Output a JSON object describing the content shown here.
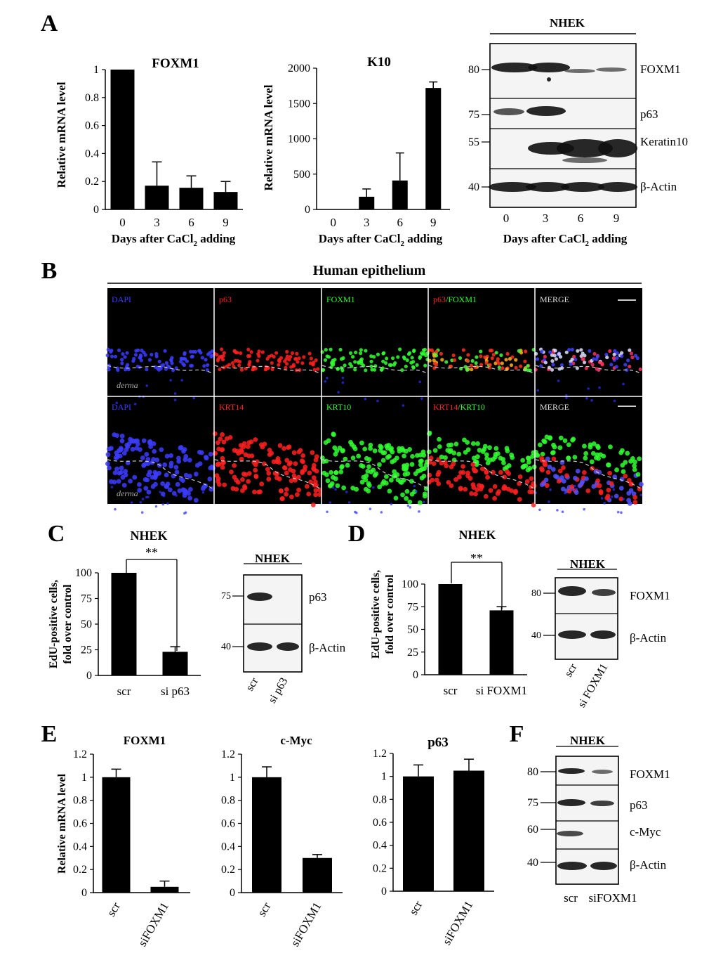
{
  "chart_data": [
    {
      "id": "A1",
      "type": "bar",
      "title": "FOXM1",
      "ylabel": "Relative mRNA level",
      "xlabel": "Days after CaCl",
      "xlabel_sub": "2",
      "xlabel_tail": " adding",
      "categories": [
        "0",
        "3",
        "6",
        "9"
      ],
      "values": [
        1,
        0.17,
        0.155,
        0.125
      ],
      "errors": [
        0,
        0.17,
        0.085,
        0.075
      ],
      "ylim": [
        0,
        1
      ],
      "yticks": [
        "0",
        "0.2",
        "0.4",
        "0.6",
        "0.8",
        "1"
      ]
    },
    {
      "id": "A2",
      "type": "bar",
      "title": "K10",
      "ylabel": "Relative mRNA level",
      "xlabel": "Days after CaCl",
      "xlabel_sub": "2",
      "xlabel_tail": " adding",
      "categories": [
        "0",
        "3",
        "6",
        "9"
      ],
      "values": [
        0,
        180,
        410,
        1720
      ],
      "errors": [
        0,
        110,
        390,
        85
      ],
      "ylim": [
        0,
        2000
      ],
      "yticks": [
        "0",
        "500",
        "1000",
        "1500",
        "2000"
      ]
    },
    {
      "id": "C",
      "type": "bar",
      "title": "NHEK",
      "ylabel": "EdU-positive cells,",
      "ylabel2": "fold over control",
      "categories": [
        "scr",
        "si p63"
      ],
      "values": [
        100,
        23
      ],
      "errors": [
        0,
        5
      ],
      "ylim": [
        0,
        100
      ],
      "yticks": [
        "0",
        "25",
        "50",
        "75",
        "100"
      ],
      "significance": "**"
    },
    {
      "id": "D",
      "type": "bar",
      "title": "NHEK",
      "ylabel": "EdU-positive cells,",
      "ylabel2": "fold over control",
      "categories": [
        "scr",
        "si FOXM1"
      ],
      "values": [
        100,
        71
      ],
      "errors": [
        0,
        4
      ],
      "ylim": [
        0,
        100
      ],
      "yticks": [
        "0",
        "25",
        "50",
        "75",
        "100"
      ],
      "significance": "**"
    },
    {
      "id": "E1",
      "type": "bar",
      "title": "FOXM1",
      "ylabel": "Relative mRNA  level",
      "categories": [
        "scr",
        "siFOXM1"
      ],
      "values": [
        1,
        0.05
      ],
      "errors": [
        0.07,
        0.05
      ],
      "ylim": [
        0,
        1.2
      ],
      "yticks": [
        "0",
        "0.2",
        "0.4",
        "0.6",
        "0.8",
        "1",
        "1.2"
      ]
    },
    {
      "id": "E2",
      "type": "bar",
      "title": "c-Myc",
      "categories": [
        "scr",
        "siFOXM1"
      ],
      "values": [
        1,
        0.3
      ],
      "errors": [
        0.09,
        0.03
      ],
      "ylim": [
        0,
        1.2
      ],
      "yticks": [
        "0",
        "0.2",
        "0.4",
        "0.6",
        "0.8",
        "1",
        "1.2"
      ]
    },
    {
      "id": "E3",
      "type": "bar",
      "title": "p63",
      "categories": [
        "scr",
        "siFOXM1"
      ],
      "values": [
        1,
        1.05
      ],
      "errors": [
        0.1,
        0.1
      ],
      "ylim": [
        0,
        1.2
      ],
      "yticks": [
        "0",
        "0.2",
        "0.4",
        "0.6",
        "0.8",
        "1",
        "1.2"
      ]
    }
  ],
  "labels": {
    "A": "A",
    "B": "B",
    "C": "C",
    "D": "D",
    "E": "E",
    "F": "F"
  },
  "blotA": {
    "header": "NHEK",
    "lanes": [
      "0",
      "3",
      "6",
      "9"
    ],
    "xlabel": "Days after CaCl",
    "xlabel_sub": "2",
    "xlabel_tail": " adding",
    "rows": [
      {
        "mw": "80",
        "name": "FOXM1"
      },
      {
        "mw": "75",
        "name": "p63"
      },
      {
        "mw": "55",
        "name": "Keratin10"
      },
      {
        "mw": "40",
        "name": "β-Actin"
      }
    ]
  },
  "micro": {
    "title": "Human epithelium",
    "row1": [
      "DAPI",
      "p63",
      "FOXM1",
      "p63/FOXM1",
      "MERGE"
    ],
    "row2": [
      "DAPI",
      "KRT14",
      "KRT10",
      "KRT14/KRT10",
      "MERGE"
    ],
    "derma": "derma",
    "colors": {
      "blue": "#3c3cff",
      "red": "#ff2020",
      "green": "#30ff30",
      "white": "#dddddd"
    }
  },
  "blotC": {
    "header": "NHEK",
    "lanes": [
      "scr",
      "si p63"
    ],
    "rows": [
      {
        "mw": "75",
        "name": "p63"
      },
      {
        "mw": "40",
        "name": "β-Actin"
      }
    ]
  },
  "blotD": {
    "header": "NHEK",
    "lanes": [
      "scr",
      "si FOXM1"
    ],
    "rows": [
      {
        "mw": "80",
        "name": "FOXM1"
      },
      {
        "mw": "40",
        "name": "β-Actin"
      }
    ]
  },
  "blotF": {
    "header": "NHEK",
    "lanes": [
      "scr",
      "siFOXM1"
    ],
    "rows": [
      {
        "mw": "80",
        "name": "FOXM1"
      },
      {
        "mw": "75",
        "name": "p63"
      },
      {
        "mw": "60",
        "name": "c-Myc"
      },
      {
        "mw": "40",
        "name": "β-Actin"
      }
    ]
  }
}
